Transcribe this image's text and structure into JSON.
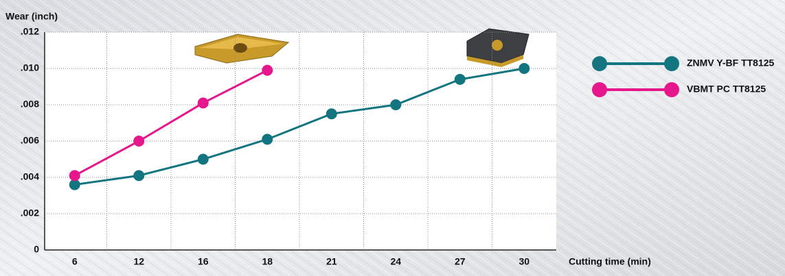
{
  "chart_data": {
    "type": "line",
    "y_label": "Wear (inch)",
    "x_label": "Cutting time (min)",
    "categories": [
      "6",
      "12",
      "16",
      "18",
      "21",
      "24",
      "27",
      "30"
    ],
    "series": [
      {
        "name": "ZNMV Y-BF TT8125",
        "color": "#137580",
        "values": [
          0.0036,
          0.0041,
          0.005,
          0.0061,
          0.0075,
          0.008,
          0.0094,
          0.01
        ]
      },
      {
        "name": "VBMT PC TT8125",
        "color": "#e6168c",
        "values": [
          0.0041,
          0.006,
          0.0081,
          0.0099,
          null,
          null,
          null,
          null
        ]
      }
    ],
    "ylim": [
      0,
      0.012
    ],
    "yticks": [
      0,
      {
        "value": 0.002,
        "label": ".002"
      },
      {
        "value": 0.004,
        "label": ".004"
      },
      {
        "value": 0.006,
        "label": ".006"
      },
      {
        "value": 0.008,
        "label": ".008"
      },
      {
        "value": 0.01,
        "label": ".010"
      },
      {
        "value": 0.012,
        "label": ".012"
      }
    ],
    "grid": true,
    "legend": "right"
  }
}
